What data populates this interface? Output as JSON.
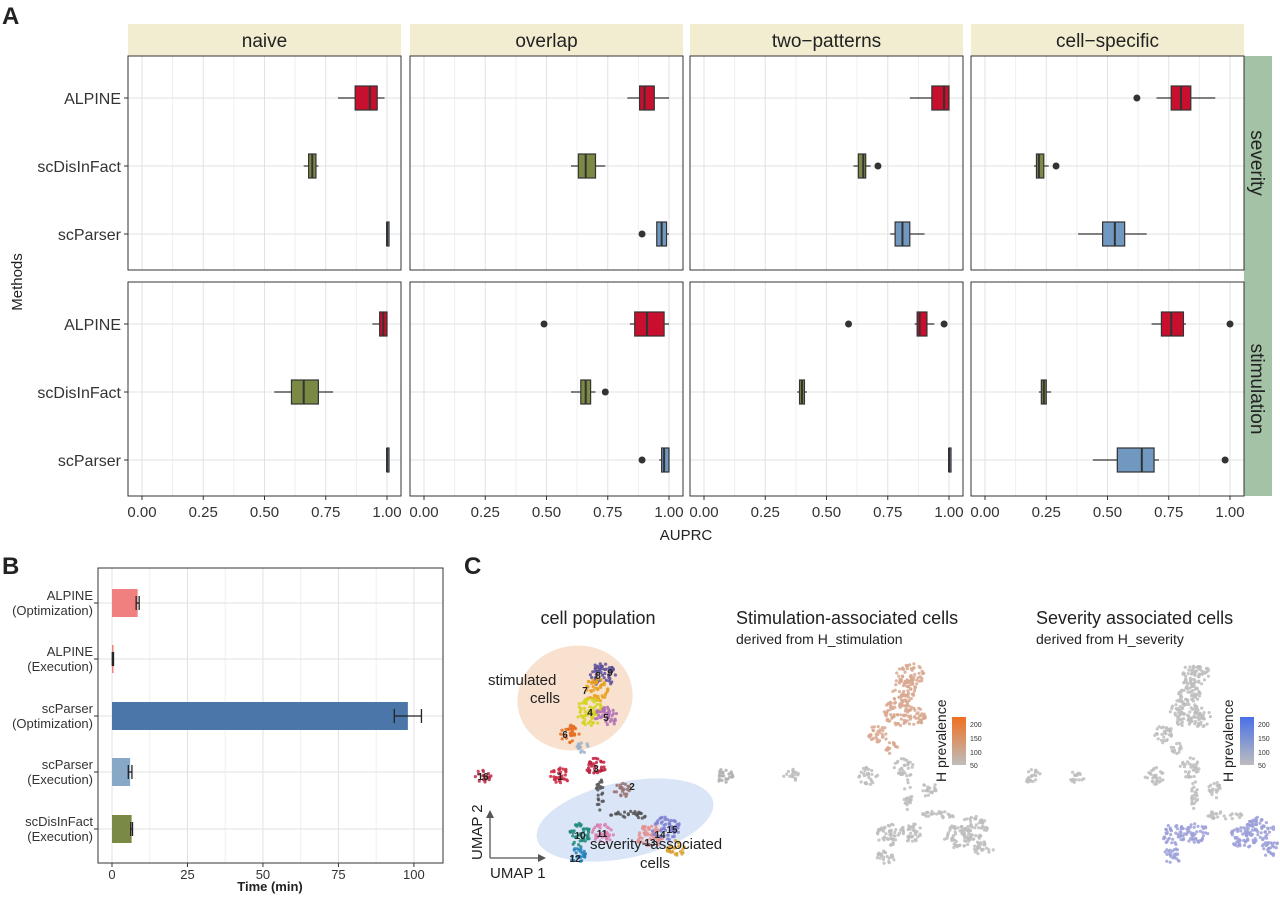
{
  "panels": {
    "a_label": "A",
    "b_label": "B",
    "c_label": "C"
  },
  "colors": {
    "ALPINE": "#c8102e",
    "scDisInFact": "#7a8a45",
    "scParser": "#7098c0",
    "strip_bg": "#f2ecd0",
    "side_strip_bg": "#a3c2a6",
    "bar_alpine": "#f08080",
    "bar_scparser_opt": "#4a76aa",
    "bar_scparser_exec": "#88a8c8",
    "bar_scdisinfact": "#7a8a45",
    "stim_scale": "#f07020",
    "sev_scale": "#4a70e8"
  },
  "chart_data": [
    {
      "type": "box",
      "facets_x": [
        "naive",
        "overlap",
        "two−patterns",
        "cell−specific"
      ],
      "facets_y": [
        "severity",
        "stimulation"
      ],
      "categories": [
        "ALPINE",
        "scDisInFact",
        "scParser"
      ],
      "ylabel": "Methods",
      "xlabel": "AUPRC",
      "xlim": [
        0,
        1
      ],
      "xticks": [
        "0.00",
        "0.25",
        "0.50",
        "0.75",
        "1.00"
      ],
      "grid": true,
      "boxes": {
        "severity": {
          "naive": {
            "ALPINE": {
              "min": 0.8,
              "q1": 0.87,
              "median": 0.93,
              "q3": 0.96,
              "max": 0.99,
              "outliers": []
            },
            "scDisInFact": {
              "min": 0.66,
              "q1": 0.68,
              "median": 0.695,
              "q3": 0.71,
              "max": 0.72,
              "outliers": []
            },
            "scParser": {
              "min": 1.0,
              "q1": 1.0,
              "median": 1.0,
              "q3": 1.0,
              "max": 1.0,
              "outliers": []
            }
          },
          "overlap": {
            "ALPINE": {
              "min": 0.83,
              "q1": 0.88,
              "median": 0.9,
              "q3": 0.94,
              "max": 1.0,
              "outliers": []
            },
            "scDisInFact": {
              "min": 0.6,
              "q1": 0.63,
              "median": 0.66,
              "q3": 0.7,
              "max": 0.74,
              "outliers": []
            },
            "scParser": {
              "min": 0.95,
              "q1": 0.95,
              "median": 0.97,
              "q3": 0.99,
              "max": 1.0,
              "outliers": [
                0.89
              ]
            }
          },
          "two−patterns": {
            "ALPINE": {
              "min": 0.84,
              "q1": 0.93,
              "median": 0.98,
              "q3": 1.0,
              "max": 1.0,
              "outliers": []
            },
            "scDisInFact": {
              "min": 0.61,
              "q1": 0.63,
              "median": 0.65,
              "q3": 0.66,
              "max": 0.68,
              "outliers": [
                0.71
              ]
            },
            "scParser": {
              "min": 0.76,
              "q1": 0.78,
              "median": 0.81,
              "q3": 0.84,
              "max": 0.9,
              "outliers": []
            }
          },
          "cell−specific": {
            "ALPINE": {
              "min": 0.7,
              "q1": 0.76,
              "median": 0.8,
              "q3": 0.84,
              "max": 0.94,
              "outliers": [
                0.62
              ]
            },
            "scDisInFact": {
              "min": 0.2,
              "q1": 0.21,
              "median": 0.22,
              "q3": 0.24,
              "max": 0.26,
              "outliers": [
                0.29
              ]
            },
            "scParser": {
              "min": 0.38,
              "q1": 0.48,
              "median": 0.53,
              "q3": 0.57,
              "max": 0.66,
              "outliers": []
            }
          }
        },
        "stimulation": {
          "naive": {
            "ALPINE": {
              "min": 0.94,
              "q1": 0.97,
              "median": 0.985,
              "q3": 1.0,
              "max": 1.0,
              "outliers": []
            },
            "scDisInFact": {
              "min": 0.54,
              "q1": 0.61,
              "median": 0.66,
              "q3": 0.72,
              "max": 0.78,
              "outliers": []
            },
            "scParser": {
              "min": 1.0,
              "q1": 1.0,
              "median": 1.0,
              "q3": 1.0,
              "max": 1.0,
              "outliers": []
            }
          },
          "overlap": {
            "ALPINE": {
              "min": 0.84,
              "q1": 0.86,
              "median": 0.91,
              "q3": 0.98,
              "max": 1.0,
              "outliers": [
                0.49
              ]
            },
            "scDisInFact": {
              "min": 0.6,
              "q1": 0.64,
              "median": 0.66,
              "q3": 0.68,
              "max": 0.7,
              "outliers": [
                0.74
              ]
            },
            "scParser": {
              "min": 0.96,
              "q1": 0.97,
              "median": 0.98,
              "q3": 1.0,
              "max": 1.0,
              "outliers": [
                0.89
              ]
            }
          },
          "two−patterns": {
            "ALPINE": {
              "min": 0.86,
              "q1": 0.87,
              "median": 0.88,
              "q3": 0.91,
              "max": 0.94,
              "outliers": [
                0.59,
                0.98
              ]
            },
            "scDisInFact": {
              "min": 0.38,
              "q1": 0.39,
              "median": 0.4,
              "q3": 0.41,
              "max": 0.42,
              "outliers": []
            },
            "scParser": {
              "min": 1.0,
              "q1": 1.0,
              "median": 1.0,
              "q3": 1.0,
              "max": 1.0,
              "outliers": []
            }
          },
          "cell−specific": {
            "ALPINE": {
              "min": 0.68,
              "q1": 0.72,
              "median": 0.76,
              "q3": 0.81,
              "max": 0.82,
              "outliers": [
                1.0
              ]
            },
            "scDisInFact": {
              "min": 0.22,
              "q1": 0.23,
              "median": 0.24,
              "q3": 0.25,
              "max": 0.27,
              "outliers": []
            },
            "scParser": {
              "min": 0.44,
              "q1": 0.54,
              "median": 0.64,
              "q3": 0.69,
              "max": 0.71,
              "outliers": [
                0.98
              ]
            }
          }
        }
      }
    },
    {
      "type": "bar",
      "orientation": "horizontal",
      "categories": [
        "ALPINE\n(Optimization)",
        "ALPINE\n(Execution)",
        "scParser\n(Optimization)",
        "scParser\n(Execution)",
        "scDisInFact\n(Execution)"
      ],
      "values": [
        8.5,
        0.3,
        98,
        6,
        6.5
      ],
      "errors": [
        0.5,
        0.2,
        4.5,
        0.6,
        0.3
      ],
      "xlabel": "Time (min)",
      "xlim": [
        0,
        105
      ],
      "xticks": [
        "0",
        "25",
        "50",
        "75",
        "100"
      ],
      "grid": true
    },
    {
      "type": "scatter",
      "subplots": [
        {
          "title": "cell population",
          "annotations": [
            "stimulated",
            "cells",
            "severity−associated",
            "cells"
          ],
          "clusters": [
            "1",
            "2",
            "3",
            "4",
            "5",
            "6",
            "7",
            "8",
            "9",
            "10",
            "11",
            "12",
            "13",
            "14",
            "15",
            "16"
          ],
          "xlabel": "UMAP 1",
          "ylabel": "UMAP 2"
        },
        {
          "title": "Stimulation-associated cells",
          "subtitle": "derived from H_stimulation",
          "legend_title": "H prevalence",
          "legend_ticks": [
            "200",
            "150",
            "100",
            "50"
          ]
        },
        {
          "title": "Severity associated cells",
          "subtitle": "derived from H_severity",
          "legend_title": "H prevalence",
          "legend_ticks": [
            "200",
            "150",
            "100",
            "50"
          ]
        }
      ]
    }
  ]
}
